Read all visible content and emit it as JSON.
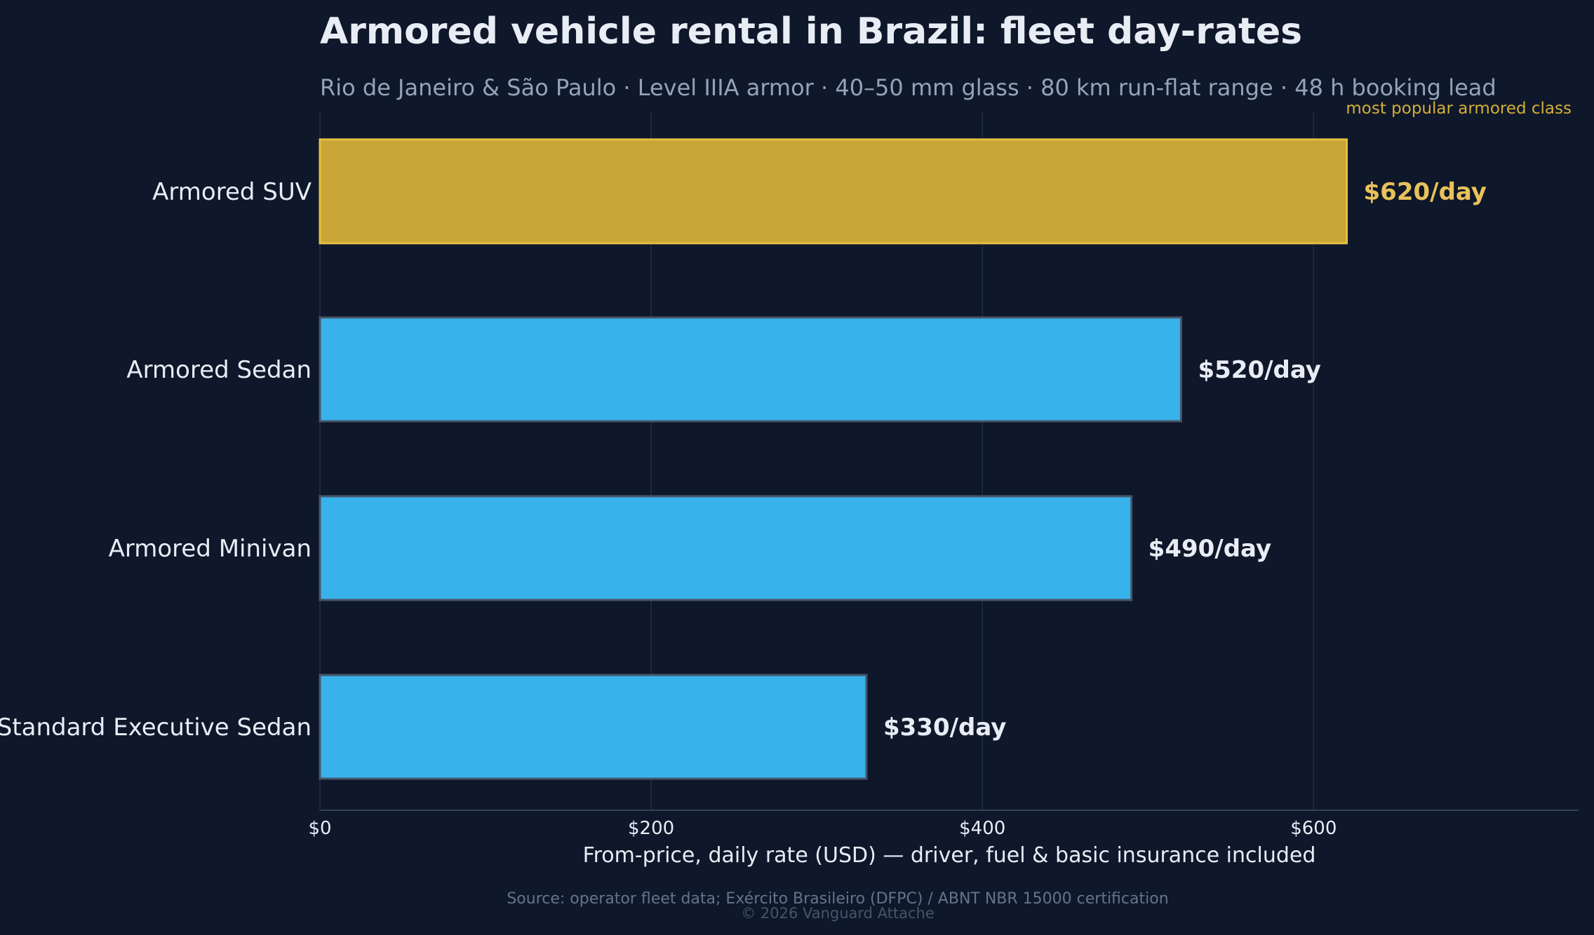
{
  "colors": {
    "background": "#0f172a",
    "bar": "#38b2eb",
    "bar_highlight": "#c9a535",
    "bar_stroke": "#475569",
    "highlight_stroke": "#e8c040",
    "highlight_text": "#e8c25a",
    "text": "#e8edf5",
    "muted": "#94a3b8"
  },
  "chart_data": {
    "type": "bar",
    "orientation": "horizontal",
    "title": "Armored vehicle rental in Brazil: fleet day-rates",
    "subtitle": "Rio de Janeiro & São Paulo · Level IIIA armor · 40–50 mm glass · 80 km run-flat range · 48 h booking lead",
    "categories": [
      "Armored SUV",
      "Armored Sedan",
      "Armored Minivan",
      "Standard Executive Sedan"
    ],
    "values": [
      620,
      520,
      490,
      330
    ],
    "value_labels": [
      "$620/day",
      "$520/day",
      "$490/day",
      "$330/day"
    ],
    "highlight_index": 0,
    "annotation": "most popular armored class",
    "xlabel": "From-price, daily rate (USD) — driver, fuel & basic insurance included",
    "ylabel": "",
    "xlim": [
      0,
      760
    ],
    "xticks": [
      0,
      200,
      400,
      600
    ],
    "xtick_labels": [
      "$0",
      "$200",
      "$400",
      "$600"
    ],
    "grid": true
  },
  "footer": {
    "source": "Source: operator fleet data; Exército Brasileiro (DFPC) / ABNT NBR 15000 certification",
    "copyright": "© 2026 Vanguard Attache"
  }
}
